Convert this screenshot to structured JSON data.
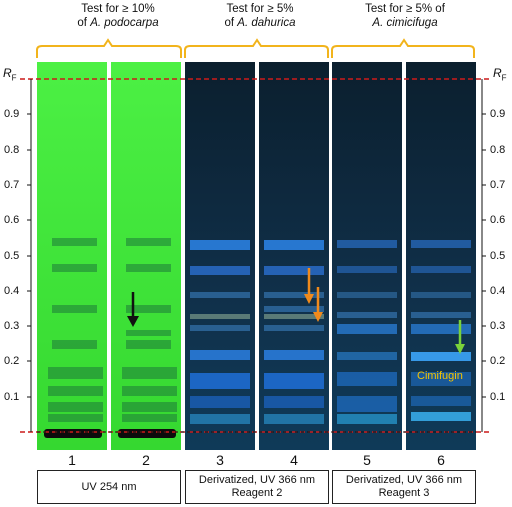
{
  "group_headers": [
    {
      "line1": "Test for ≥ 10%",
      "line2_prefix": "of ",
      "line2_italic": "A. podocarpa"
    },
    {
      "line1": "Test for ≥ 5%",
      "line2_prefix": "of ",
      "line2_italic": "A. dahurica"
    },
    {
      "line1": "Test for ≥ 5% of",
      "line2_prefix": "",
      "line2_italic": "A. cimicifuga"
    }
  ],
  "rf_axis": {
    "label_main": "R",
    "label_sub": "F",
    "ticks": [
      "0.9",
      "0.8",
      "0.7",
      "0.6",
      "0.5",
      "0.4",
      "0.3",
      "0.2",
      "0.1"
    ]
  },
  "lanes": [
    "1",
    "2",
    "3",
    "4",
    "5",
    "6"
  ],
  "captions": [
    {
      "line1": "UV 254 nm",
      "line2": ""
    },
    {
      "line1": "Derivatized, UV 366 nm",
      "line2": "Reagent 2"
    },
    {
      "line1": "Derivatized, UV 366 nm",
      "line2": "Reagent 3"
    }
  ],
  "annotation": "Cimifugin",
  "colors": {
    "uv254_plate": "#3ee83a",
    "uv366_plate": "#0d2536",
    "bracket": "#f2b41c",
    "front_line": "#cc1a1a",
    "black_arrow": "#111111",
    "orange_arrow": "#f08a1c",
    "green_arrow": "#7ad23a",
    "cimifugin_label": "#f5c400"
  }
}
